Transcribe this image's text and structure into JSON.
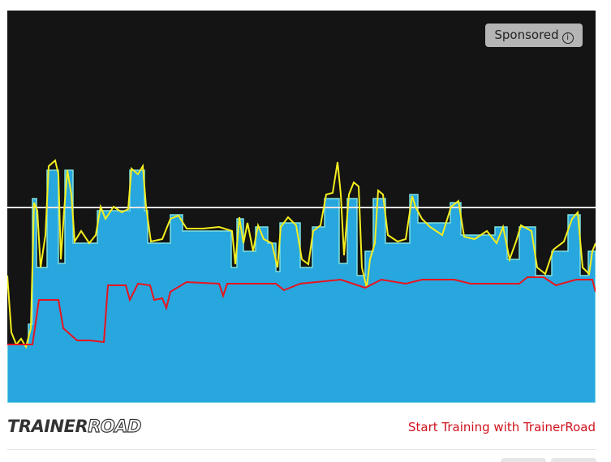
{
  "ad": {
    "badge": "Sponsored",
    "logo_bold": "TRAINER",
    "logo_light": "ROAD",
    "cta": "Start Training with TrainerRoad"
  }
}
